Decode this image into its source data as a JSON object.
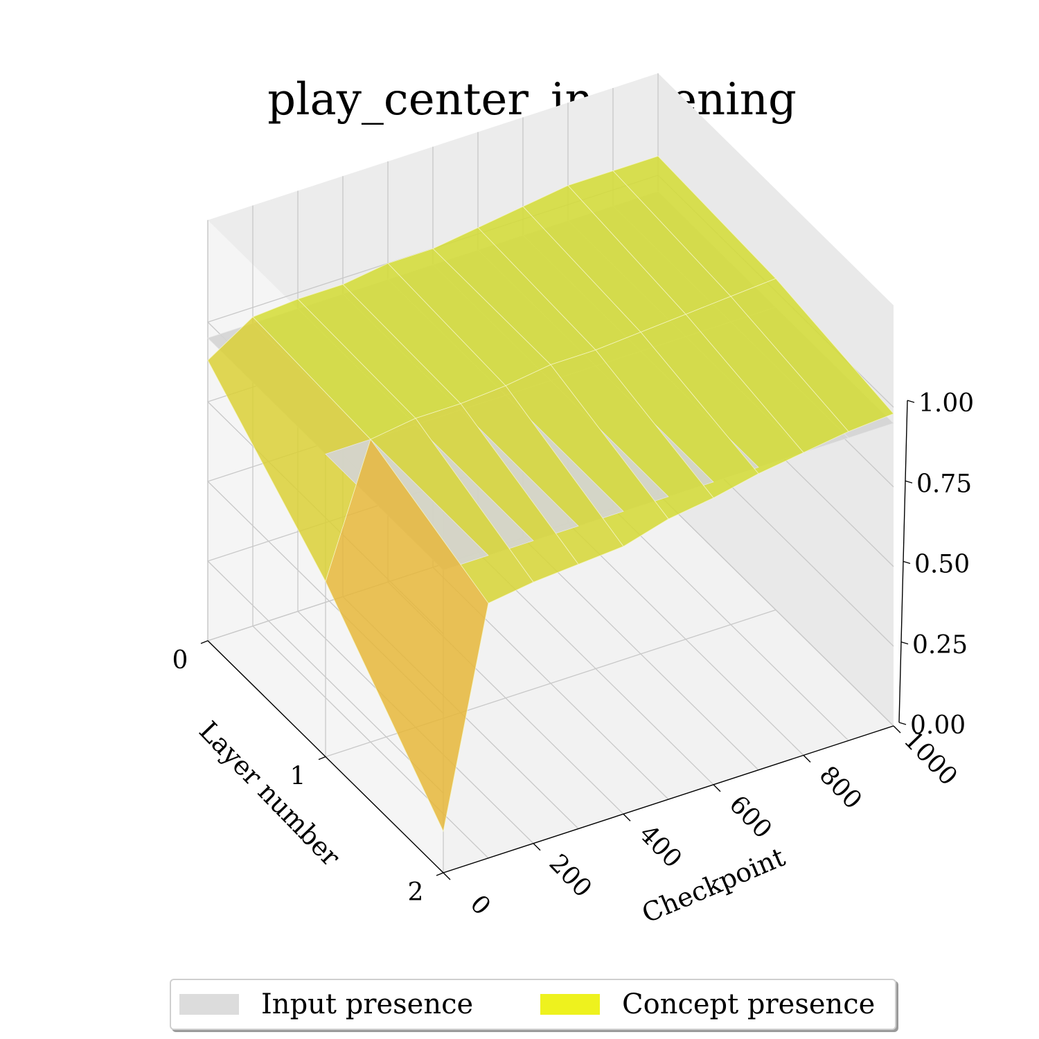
{
  "chart_data": {
    "type": "surface3d",
    "title": "play_center_in_opening",
    "xlabel": "Checkpoint",
    "ylabel": "Layer number",
    "zlabel": "",
    "x_ticks": [
      0,
      200,
      400,
      600,
      800,
      1000
    ],
    "y_ticks": [
      0,
      1,
      2
    ],
    "z_ticks": [
      "0.00",
      "0.25",
      "0.50",
      "0.75",
      "1.00"
    ],
    "xlim": [
      0,
      1000
    ],
    "ylim": [
      0,
      2
    ],
    "zlim": [
      0,
      1
    ],
    "grid": true,
    "legend_placement": "bottom",
    "checkpoints": [
      0,
      100,
      200,
      300,
      400,
      500,
      600,
      700,
      800,
      900,
      1000
    ],
    "layers": [
      0,
      1,
      2
    ],
    "series": [
      {
        "name": "Input presence",
        "color": "#d4d4d4",
        "z": [
          [
            0.95,
            0.95,
            0.95,
            0.95,
            0.95,
            0.95,
            0.95,
            0.95,
            0.95,
            0.95,
            0.95
          ],
          [
            0.95,
            0.95,
            0.95,
            0.95,
            0.95,
            0.95,
            0.95,
            0.95,
            0.95,
            0.95,
            0.95
          ],
          [
            0.95,
            0.95,
            0.95,
            0.95,
            0.95,
            0.95,
            0.95,
            0.95,
            0.95,
            0.95,
            0.95
          ]
        ]
      },
      {
        "name": "Concept presence",
        "color": "#eef21e",
        "z": [
          [
            0.88,
            0.97,
            0.98,
            0.98,
            1.0,
            1.0,
            1.02,
            1.04,
            1.06,
            1.06,
            1.06
          ],
          [
            0.55,
            0.95,
            0.97,
            0.97,
            0.98,
            1.0,
            1.0,
            1.01,
            1.02,
            1.03,
            1.04
          ],
          [
            0.13,
            0.8,
            0.82,
            0.83,
            0.84,
            0.88,
            0.9,
            0.93,
            0.95,
            0.97,
            0.98
          ]
        ]
      }
    ]
  },
  "legend": {
    "items": [
      {
        "label": "Input presence",
        "color": "#dcdcdc"
      },
      {
        "label": "Concept presence",
        "color": "#eef21e"
      }
    ]
  }
}
